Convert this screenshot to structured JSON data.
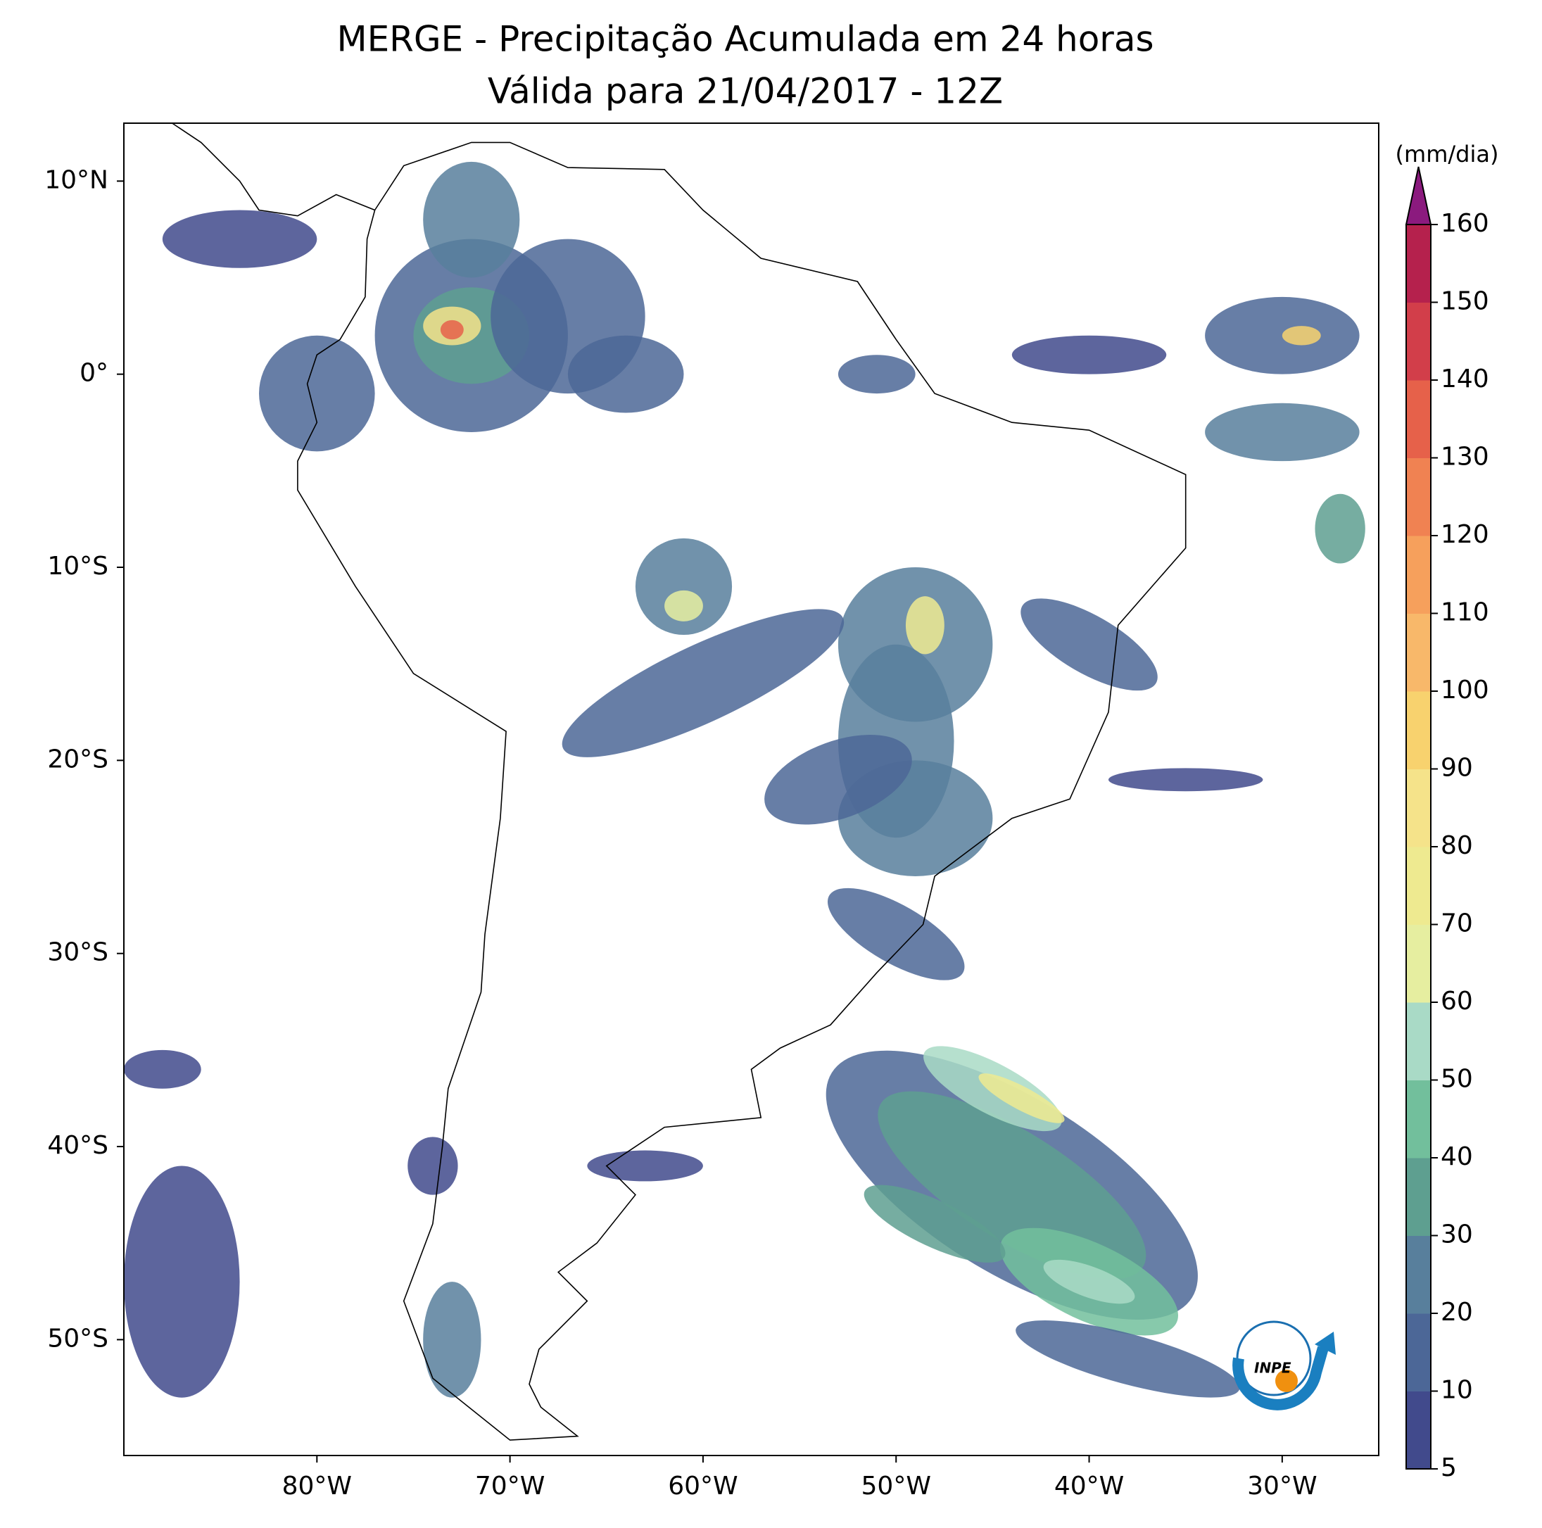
{
  "chart_data": {
    "type": "map",
    "title": "MERGE - Precipitação Acumulada em 24 horas",
    "subtitle": "Válida para 21/04/2017 - 12Z",
    "xlim": [
      -90,
      -25
    ],
    "ylim": [
      -56,
      13
    ],
    "xticks": [
      {
        "value": -80,
        "label": "80°W"
      },
      {
        "value": -70,
        "label": "70°W"
      },
      {
        "value": -60,
        "label": "60°W"
      },
      {
        "value": -50,
        "label": "50°W"
      },
      {
        "value": -40,
        "label": "40°W"
      },
      {
        "value": -30,
        "label": "30°W"
      }
    ],
    "yticks": [
      {
        "value": 10,
        "label": "10°N"
      },
      {
        "value": 0,
        "label": "0°"
      },
      {
        "value": -10,
        "label": "10°S"
      },
      {
        "value": -20,
        "label": "20°S"
      },
      {
        "value": -30,
        "label": "30°S"
      },
      {
        "value": -40,
        "label": "40°S"
      },
      {
        "value": -50,
        "label": "50°S"
      }
    ],
    "colorbar": {
      "label": "(mm/dia)",
      "ticks": [
        5,
        10,
        20,
        30,
        40,
        50,
        60,
        70,
        80,
        90,
        100,
        110,
        120,
        130,
        140,
        150,
        160
      ],
      "colors": [
        "#414a8c",
        "#4c6797",
        "#587f9c",
        "#5e9f90",
        "#72bf9c",
        "#a9dac6",
        "#e6eea0",
        "#eeea90",
        "#f5e38a",
        "#f8d26e",
        "#f8b86a",
        "#f6a05c",
        "#f08252",
        "#e6614a",
        "#d23e4a",
        "#b5214d"
      ],
      "extend_color": "#8b1a7e"
    }
  },
  "logo": "INPE"
}
